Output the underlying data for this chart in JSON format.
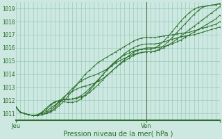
{
  "xlabel": "Pression niveau de la mer( hPa )",
  "bg_color": "#cce8e0",
  "grid_color": "#99ccbb",
  "line_color": "#2d6e2d",
  "tick_label_color": "#2d6e2d",
  "axis_label_color": "#2d6e2d",
  "spine_color": "#2d6e2d",
  "vline_color": "#557755",
  "ylim": [
    1010.5,
    1019.5
  ],
  "xlim": [
    0,
    47
  ],
  "vline_x": 30,
  "ytick_positions": [
    1011,
    1012,
    1013,
    1014,
    1015,
    1016,
    1017,
    1018,
    1019
  ],
  "xtick_positions": [
    0,
    30,
    47
  ],
  "xtick_labels": [
    "Jeu",
    "Ven",
    ""
  ],
  "series": [
    [
      1011.5,
      1011.1,
      1011.0,
      1010.9,
      1010.85,
      1010.85,
      1010.9,
      1011.0,
      1011.1,
      1011.3,
      1011.6,
      1011.9,
      1012.3,
      1012.7,
      1013.2,
      1013.6,
      1014.0,
      1014.3,
      1014.6,
      1014.9,
      1015.1,
      1015.3,
      1015.5,
      1015.7,
      1015.9,
      1016.1,
      1016.3,
      1016.5,
      1016.65,
      1016.75,
      1016.8,
      1016.8,
      1016.8,
      1016.85,
      1016.9,
      1016.95,
      1017.0,
      1017.05,
      1017.1,
      1017.15,
      1017.2,
      1017.3,
      1017.4,
      1017.5,
      1017.6,
      1017.7,
      1017.8,
      1018.0
    ],
    [
      1011.5,
      1011.1,
      1011.0,
      1010.9,
      1010.85,
      1010.85,
      1010.9,
      1011.0,
      1011.15,
      1011.4,
      1011.75,
      1012.15,
      1012.55,
      1012.9,
      1013.2,
      1013.45,
      1013.65,
      1013.8,
      1013.9,
      1014.05,
      1014.2,
      1014.4,
      1014.65,
      1014.95,
      1015.25,
      1015.55,
      1015.8,
      1016.0,
      1016.15,
      1016.25,
      1016.3,
      1016.3,
      1016.3,
      1016.35,
      1016.45,
      1016.55,
      1016.65,
      1016.75,
      1016.85,
      1016.9,
      1016.95,
      1017.0,
      1017.1,
      1017.2,
      1017.3,
      1017.4,
      1017.5,
      1017.6
    ],
    [
      1011.5,
      1011.1,
      1011.0,
      1010.9,
      1010.85,
      1010.85,
      1010.9,
      1011.05,
      1011.25,
      1011.55,
      1011.9,
      1012.25,
      1012.5,
      1012.7,
      1012.85,
      1013.0,
      1013.1,
      1013.2,
      1013.3,
      1013.45,
      1013.65,
      1013.9,
      1014.2,
      1014.5,
      1014.8,
      1015.1,
      1015.4,
      1015.65,
      1015.8,
      1015.9,
      1016.0,
      1016.0,
      1016.0,
      1016.05,
      1016.1,
      1016.2,
      1016.3,
      1016.45,
      1016.6,
      1016.8,
      1017.0,
      1017.2,
      1017.4,
      1017.6,
      1017.8,
      1018.0,
      1018.2,
      1018.5
    ],
    [
      1011.5,
      1011.1,
      1011.0,
      1010.9,
      1010.85,
      1010.9,
      1011.0,
      1011.15,
      1011.4,
      1011.65,
      1011.9,
      1012.05,
      1012.1,
      1012.1,
      1012.15,
      1012.25,
      1012.4,
      1012.6,
      1012.9,
      1013.2,
      1013.55,
      1013.9,
      1014.2,
      1014.5,
      1014.75,
      1015.0,
      1015.2,
      1015.4,
      1015.55,
      1015.65,
      1015.7,
      1015.7,
      1015.75,
      1015.85,
      1016.0,
      1016.2,
      1016.4,
      1016.65,
      1016.9,
      1017.15,
      1017.4,
      1017.65,
      1017.9,
      1018.15,
      1018.4,
      1018.65,
      1018.9,
      1019.15
    ],
    [
      1011.5,
      1011.1,
      1011.0,
      1010.9,
      1010.85,
      1010.9,
      1011.05,
      1011.3,
      1011.6,
      1011.85,
      1012.0,
      1012.05,
      1012.05,
      1012.1,
      1012.2,
      1012.35,
      1012.6,
      1012.9,
      1013.25,
      1013.6,
      1013.95,
      1014.3,
      1014.6,
      1014.85,
      1015.05,
      1015.2,
      1015.35,
      1015.5,
      1015.6,
      1015.65,
      1015.7,
      1015.7,
      1015.75,
      1015.9,
      1016.15,
      1016.45,
      1016.8,
      1017.15,
      1017.5,
      1017.85,
      1018.2,
      1018.55,
      1018.85,
      1019.1,
      1019.2,
      1019.25,
      1019.3,
      1019.35
    ],
    [
      1011.5,
      1011.1,
      1011.0,
      1010.9,
      1010.85,
      1010.9,
      1011.1,
      1011.4,
      1011.7,
      1011.9,
      1011.95,
      1011.9,
      1011.85,
      1011.85,
      1011.9,
      1012.1,
      1012.4,
      1012.75,
      1013.15,
      1013.55,
      1013.95,
      1014.35,
      1014.7,
      1015.0,
      1015.25,
      1015.45,
      1015.6,
      1015.75,
      1015.85,
      1015.9,
      1015.9,
      1015.9,
      1016.0,
      1016.2,
      1016.5,
      1016.85,
      1017.25,
      1017.65,
      1018.05,
      1018.4,
      1018.7,
      1018.95,
      1019.1,
      1019.15,
      1019.2,
      1019.25,
      1019.3,
      1019.4
    ]
  ]
}
